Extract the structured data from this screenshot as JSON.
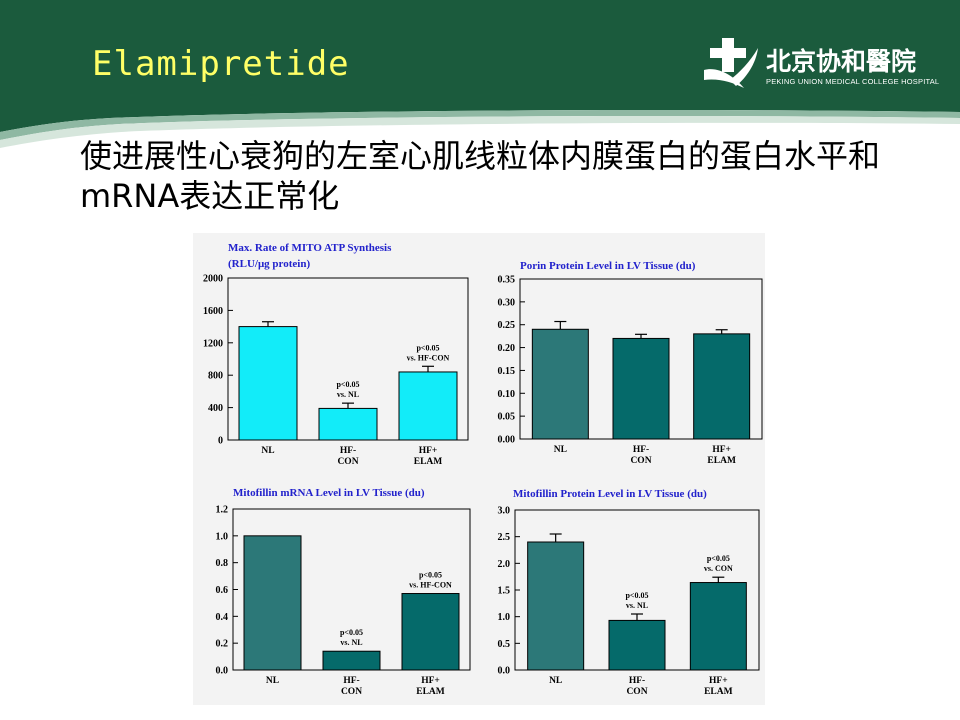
{
  "slide": {
    "title": "Elamipretide",
    "subtitle": "使进展性心衰狗的左室心肌线粒体内膜蛋白的蛋白水平和mRNA表达正常化",
    "logo_cn": "北京协和醫院",
    "logo_en": "PEKING UNION MEDICAL COLLEGE HOSPITAL"
  },
  "colors": {
    "header_green": "#1b5b3d",
    "title_yellow": "#ffff66",
    "bar_cyan": "#12ecf9",
    "bar_teal": "#2c7878",
    "bar_dark_teal": "#056a6a",
    "chart_title_blue": "#2222cc"
  },
  "chart_data": [
    {
      "type": "bar",
      "title": "Max. Rate of MITO ATP Synthesis",
      "subtitle": "(RLU/μg protein)",
      "categories": [
        [
          "NL"
        ],
        [
          "HF-",
          "CON"
        ],
        [
          "HF+",
          "ELAM"
        ]
      ],
      "values": [
        1400,
        390,
        840
      ],
      "errors": [
        60,
        65,
        70
      ],
      "ylim": [
        0,
        2000
      ],
      "yticks": [
        "0",
        "400",
        "800",
        "1200",
        "1600",
        "2000"
      ],
      "annotations": [
        [
          "p<0.05",
          "vs. NL"
        ],
        [
          "p<0.05",
          "vs. HF-CON"
        ]
      ],
      "bar_colors": [
        "#12ecf9",
        "#12ecf9",
        "#12ecf9"
      ]
    },
    {
      "type": "bar",
      "title": "Porin Protein Level in LV Tissue (du)",
      "categories": [
        [
          "NL"
        ],
        [
          "HF-",
          "CON"
        ],
        [
          "HF+",
          "ELAM"
        ]
      ],
      "values": [
        0.24,
        0.22,
        0.23
      ],
      "errors": [
        0.017,
        0.009,
        0.009
      ],
      "ylim": [
        0,
        0.35
      ],
      "yticks": [
        "0.00",
        "0.05",
        "0.10",
        "0.15",
        "0.20",
        "0.25",
        "0.30",
        "0.35"
      ],
      "annotations": [],
      "bar_colors": [
        "#2c7878",
        "#056a6a",
        "#056a6a"
      ]
    },
    {
      "type": "bar",
      "title": "Mitofillin mRNA Level in LV Tissue (du)",
      "categories": [
        [
          "NL"
        ],
        [
          "HF-",
          "CON"
        ],
        [
          "HF+",
          "ELAM"
        ]
      ],
      "values": [
        1.0,
        0.14,
        0.57
      ],
      "errors": [
        0,
        0,
        0
      ],
      "ylim": [
        0,
        1.2
      ],
      "yticks": [
        "0.0",
        "0.2",
        "0.4",
        "0.6",
        "0.8",
        "1.0",
        "1.2"
      ],
      "annotations": [
        [
          "p<0.05",
          "vs. NL"
        ],
        [
          "p<0.05",
          "vs. HF-CON"
        ]
      ],
      "bar_colors": [
        "#2c7878",
        "#056a6a",
        "#056a6a"
      ]
    },
    {
      "type": "bar",
      "title": "Mitofillin Protein Level in LV Tissue (du)",
      "categories": [
        [
          "NL"
        ],
        [
          "HF-",
          "CON"
        ],
        [
          "HF+",
          "ELAM"
        ]
      ],
      "values": [
        2.4,
        0.93,
        1.64
      ],
      "errors": [
        0.15,
        0.12,
        0.1
      ],
      "ylim": [
        0,
        3.0
      ],
      "yticks": [
        "0.0",
        "0.5",
        "1.0",
        "1.5",
        "2.0",
        "2.5",
        "3.0"
      ],
      "annotations": [
        [
          "p<0.05",
          "vs. NL"
        ],
        [
          "p<0.05",
          "vs. CON"
        ]
      ],
      "bar_colors": [
        "#2c7878",
        "#056a6a",
        "#056a6a"
      ]
    }
  ]
}
